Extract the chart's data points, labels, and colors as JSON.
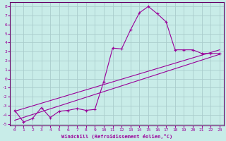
{
  "xlabel": "Windchill (Refroidissement éolien,°C)",
  "bg_color": "#c8ece8",
  "grid_color": "#aacccc",
  "line_color": "#990099",
  "spine_color": "#660066",
  "xlim": [
    -0.5,
    23.5
  ],
  "ylim": [
    -5.2,
    8.5
  ],
  "x_ticks": [
    0,
    1,
    2,
    3,
    4,
    5,
    6,
    7,
    8,
    9,
    10,
    11,
    12,
    13,
    14,
    15,
    16,
    17,
    18,
    19,
    20,
    21,
    22,
    23
  ],
  "y_ticks": [
    -5,
    -4,
    -3,
    -2,
    -1,
    0,
    1,
    2,
    3,
    4,
    5,
    6,
    7,
    8
  ],
  "curve1_x": [
    0,
    1,
    2,
    3,
    4,
    5,
    6,
    7,
    8,
    9,
    10,
    11,
    12,
    13,
    14,
    15,
    16,
    17,
    18,
    19,
    20,
    21,
    22,
    23
  ],
  "curve1_y": [
    -3.5,
    -4.8,
    -4.4,
    -3.2,
    -4.3,
    -3.6,
    -3.5,
    -3.3,
    -3.5,
    -3.4,
    -0.3,
    3.4,
    3.3,
    5.4,
    7.3,
    8.0,
    7.2,
    6.3,
    3.2,
    3.2,
    3.2,
    2.8,
    2.8,
    2.8
  ],
  "line1_x": [
    0,
    23
  ],
  "line1_y": [
    -4.6,
    2.7
  ],
  "line2_x": [
    0,
    23
  ],
  "line2_y": [
    -3.6,
    3.2
  ]
}
